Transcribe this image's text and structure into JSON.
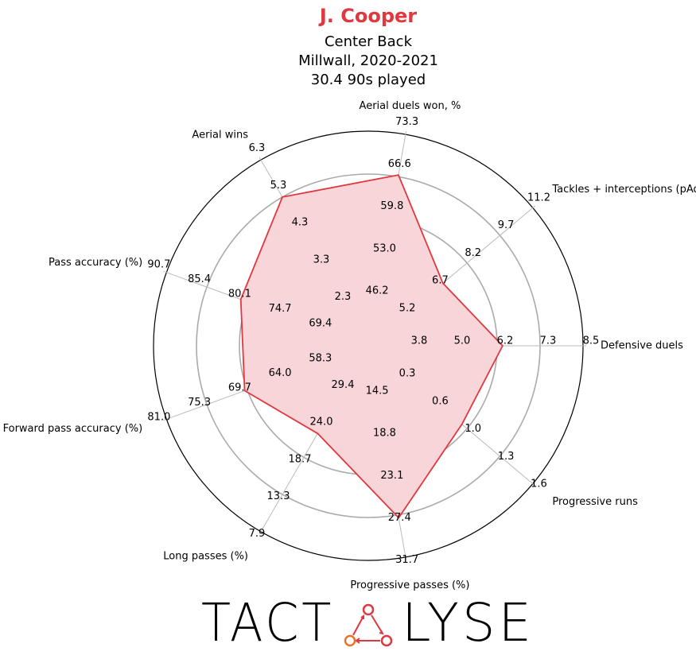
{
  "chart_data": {
    "type": "radar",
    "title": "J. Cooper",
    "subtitle": [
      "Center Back",
      "Millwall, 2020-2021",
      "30.4 90s played"
    ],
    "categories": [
      "Defensive duels",
      "Tackles + interceptions (pAdj)",
      "Aerial duels won, %",
      "Aerial wins",
      "Pass accuracy (%)",
      "Forward pass accuracy (%)",
      "Long passes (%)",
      "Progressive passes (%)",
      "Progressive runs"
    ],
    "values": [
      6.3,
      7.1,
      66.8,
      5.3,
      80.9,
      70.0,
      22.1,
      27.7,
      0.9
    ],
    "axis_ticks": [
      [
        3.8,
        {
          "value": 5.0,
          "label": "5.0"
        },
        6.2,
        7.3,
        8.5
      ],
      [
        5.2,
        6.7,
        8.2,
        9.7,
        11.2
      ],
      [
        46.2,
        {
          "value": 53.0,
          "label": "53.0"
        },
        59.8,
        66.6,
        73.3
      ],
      [
        2.3,
        3.3,
        4.3,
        5.3,
        6.3
      ],
      [
        69.4,
        74.7,
        80.1,
        85.4,
        90.7
      ],
      [
        58.3,
        {
          "value": 64.0,
          "label": "64.0"
        },
        69.7,
        75.3,
        {
          "value": 81.0,
          "label": "81.0"
        }
      ],
      [
        29.4,
        {
          "value": 24.0,
          "label": "24.0"
        },
        18.7,
        13.3,
        7.9
      ],
      [
        14.5,
        18.8,
        23.1,
        27.4,
        31.7
      ],
      [
        0.3,
        0.6,
        {
          "value": 1.0,
          "label": "1.0"
        },
        1.3,
        1.6
      ]
    ],
    "color": "#e0383e",
    "fill": "#f7d5d8",
    "logo": [
      "TACT",
      "LYSE"
    ]
  }
}
